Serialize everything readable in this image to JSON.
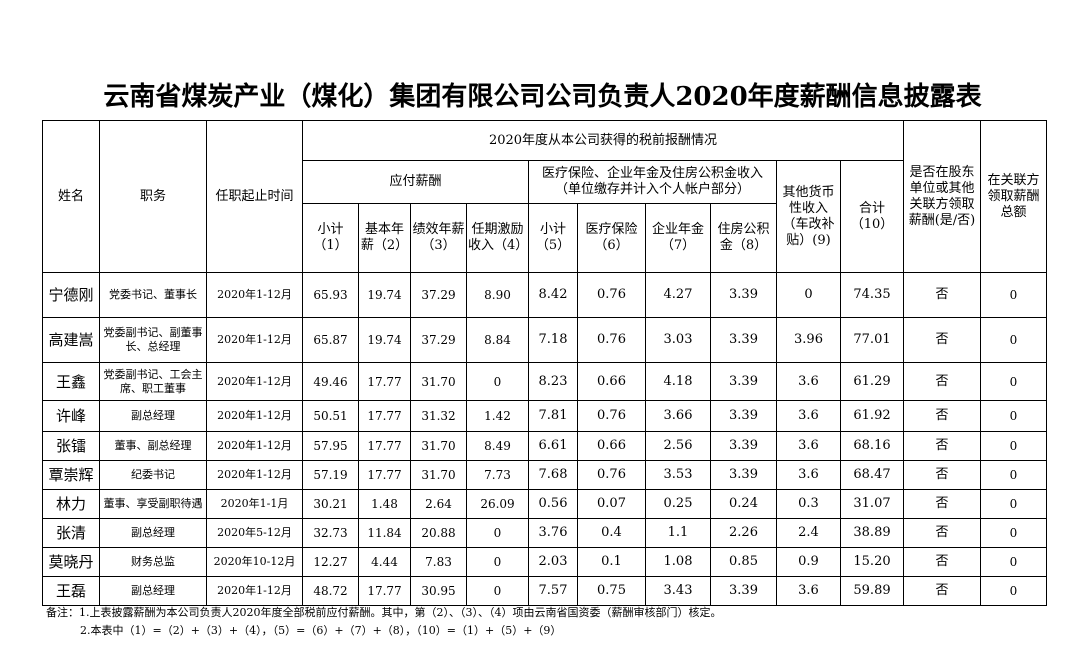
{
  "title": "云南省煤炭产业（煤化）集团有限公司公司负责人2020年度薪酬信息披露表",
  "headers": {
    "name": "姓名",
    "position": "职务",
    "term": "任职起止时间",
    "group": "2020年度从本公司获得的税前报酬情况",
    "payable": "应付薪酬",
    "insurance": "医疗保险、企业年金及住房公积金收入（单位缴存并计入个人帐户部分）",
    "other": "其他货币性收入（车改补贴）(9)",
    "total": "合计（10）",
    "shareholder": "是否在股东单位或其他关联方领取薪酬(是/否)",
    "related": "在关联方领取薪酬总额",
    "sub1": "小计（1）",
    "sub2": "基本年薪（2）",
    "sub3": "绩效年薪（3）",
    "sub4": "任期激励收入（4）",
    "sub5": "小计（5）",
    "sub6": "医疗保险（6）",
    "sub7": "企业年金（7）",
    "sub8": "住房公积金（8）"
  },
  "rows": [
    [
      "宁德刚",
      "党委书记、董事长",
      "2020年1-12月",
      "65.93",
      "19.74",
      "37.29",
      "8.90",
      "8.42",
      "0.76",
      "4.27",
      "3.39",
      "0",
      "74.35",
      "否",
      "0"
    ],
    [
      "高建嵩",
      "党委副书记、副董事长、总经理",
      "2020年1-12月",
      "65.87",
      "19.74",
      "37.29",
      "8.84",
      "7.18",
      "0.76",
      "3.03",
      "3.39",
      "3.96",
      "77.01",
      "否",
      "0"
    ],
    [
      "王鑫",
      "党委副书记、工会主席、职工董事",
      "2020年1-12月",
      "49.46",
      "17.77",
      "31.70",
      "0",
      "8.23",
      "0.66",
      "4.18",
      "3.39",
      "3.6",
      "61.29",
      "否",
      "0"
    ],
    [
      "许峰",
      "副总经理",
      "2020年1-12月",
      "50.51",
      "17.77",
      "31.32",
      "1.42",
      "7.81",
      "0.76",
      "3.66",
      "3.39",
      "3.6",
      "61.92",
      "否",
      "0"
    ],
    [
      "张镭",
      "董事、副总经理",
      "2020年1-12月",
      "57.95",
      "17.77",
      "31.70",
      "8.49",
      "6.61",
      "0.66",
      "2.56",
      "3.39",
      "3.6",
      "68.16",
      "否",
      "0"
    ],
    [
      "覃崇辉",
      "纪委书记",
      "2020年1-12月",
      "57.19",
      "17.77",
      "31.70",
      "7.73",
      "7.68",
      "0.76",
      "3.53",
      "3.39",
      "3.6",
      "68.47",
      "否",
      "0"
    ],
    [
      "林力",
      "董事、享受副职待遇",
      "2020年1-1月",
      "30.21",
      "1.48",
      "2.64",
      "26.09",
      "0.56",
      "0.07",
      "0.25",
      "0.24",
      "0.3",
      "31.07",
      "否",
      "0"
    ],
    [
      "张清",
      "副总经理",
      "2020年5-12月",
      "32.73",
      "11.84",
      "20.88",
      "0",
      "3.76",
      "0.4",
      "1.1",
      "2.26",
      "2.4",
      "38.89",
      "否",
      "0"
    ],
    [
      "莫晓丹",
      "财务总监",
      "2020年10-12月",
      "12.27",
      "4.44",
      "7.83",
      "0",
      "2.03",
      "0.1",
      "1.08",
      "0.85",
      "0.9",
      "15.20",
      "否",
      "0"
    ],
    [
      "王磊",
      "副总经理",
      "2020年1-12月",
      "48.72",
      "17.77",
      "30.95",
      "0",
      "7.57",
      "0.75",
      "3.43",
      "3.39",
      "3.6",
      "59.89",
      "否",
      "0"
    ]
  ],
  "notes": [
    "备注：1.上表披露薪酬为本公司负责人2020年度全部税前应付薪酬。其中，第（2）、（3）、（4）项由云南省国资委（薪酬审核部门）核定。",
    "2.本表中（1）=（2）+（3）+（4），（5）=（6）+（7）+（8），（10）=（1）+（5）+（9）"
  ]
}
